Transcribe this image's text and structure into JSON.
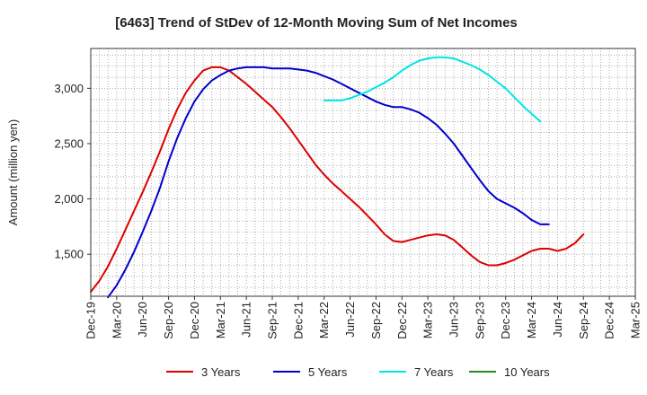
{
  "chart_data": {
    "type": "line",
    "title": "[6463]  Trend of StDev of 12-Month Moving Sum of Net Incomes",
    "xlabel": "",
    "ylabel": "Amount (million yen)",
    "ylim": [
      1120,
      3360
    ],
    "y_ticks": [
      1500,
      2000,
      2500,
      3000
    ],
    "y_tick_labels": [
      "1,500",
      "2,000",
      "2,500",
      "3,000"
    ],
    "x_ticks": [
      "Dec-19",
      "Mar-20",
      "Jun-20",
      "Sep-20",
      "Dec-20",
      "Mar-21",
      "Jun-21",
      "Sep-21",
      "Dec-21",
      "Mar-22",
      "Jun-22",
      "Sep-22",
      "Dec-22",
      "Mar-23",
      "Jun-23",
      "Sep-23",
      "Dec-23",
      "Mar-24",
      "Jun-24",
      "Sep-24",
      "Dec-24",
      "Mar-25"
    ],
    "grid": true,
    "legend_position": "bottom",
    "series": [
      {
        "name": "3 Years",
        "color": "#dd0000",
        "start_index": 0,
        "values": [
          1160,
          1260,
          1390,
          1550,
          1720,
          1890,
          2060,
          2240,
          2430,
          2630,
          2810,
          2960,
          3070,
          3160,
          3190,
          3190,
          3160,
          3100,
          3040,
          2970,
          2900,
          2830,
          2740,
          2640,
          2530,
          2420,
          2310,
          2220,
          2140,
          2070,
          2000,
          1930,
          1850,
          1770,
          1680,
          1620,
          1610,
          1630,
          1650,
          1670,
          1680,
          1670,
          1630,
          1560,
          1490,
          1430,
          1400,
          1400,
          1420,
          1450,
          1490,
          1530,
          1550,
          1550,
          1530,
          1550,
          1600,
          1680
        ]
      },
      {
        "name": "5 Years",
        "color": "#0000cc",
        "start_index": 2,
        "values": [
          1110,
          1220,
          1360,
          1520,
          1700,
          1890,
          2100,
          2340,
          2550,
          2730,
          2880,
          2990,
          3070,
          3120,
          3160,
          3180,
          3190,
          3190,
          3190,
          3180,
          3180,
          3180,
          3170,
          3160,
          3140,
          3110,
          3080,
          3040,
          3000,
          2960,
          2920,
          2880,
          2850,
          2830,
          2830,
          2810,
          2780,
          2730,
          2670,
          2590,
          2500,
          2390,
          2280,
          2170,
          2070,
          2000,
          1960,
          1920,
          1870,
          1810,
          1770,
          1770
        ]
      },
      {
        "name": "7 Years",
        "color": "#00e5e5",
        "start_index": 27,
        "values": [
          2890,
          2890,
          2890,
          2910,
          2940,
          2970,
          3010,
          3050,
          3100,
          3160,
          3210,
          3250,
          3270,
          3280,
          3280,
          3270,
          3240,
          3210,
          3170,
          3120,
          3060,
          3000,
          2920,
          2840,
          2770,
          2700
        ]
      },
      {
        "name": "10 Years",
        "color": "#228b22",
        "start_index": 0,
        "values": []
      }
    ]
  }
}
